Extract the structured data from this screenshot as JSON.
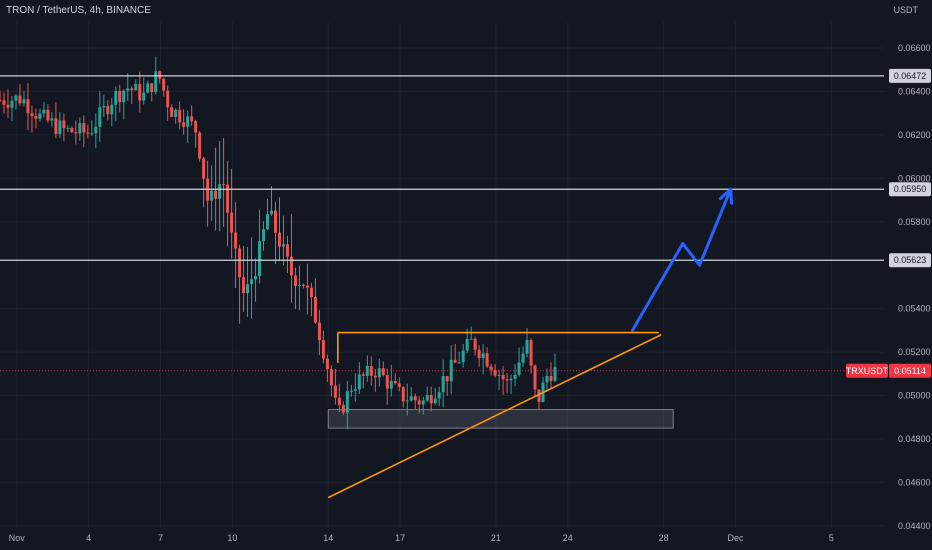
{
  "header": {
    "title": "TRON / TetherUS, 4h, BINANCE"
  },
  "axis": {
    "currency": "USDT"
  },
  "colors": {
    "background": "#131722",
    "grid": "#1e222d",
    "up": "#26a69a",
    "down": "#ef5350",
    "level_line": "#d1d4dc",
    "triangle": "#ff9800",
    "projection": "#2962ff",
    "zone_fill": "#5d606b",
    "price_label_bg": "#f23645",
    "level_label_bg": "#d1d4dc"
  },
  "chart_data": {
    "type": "candlestick",
    "symbol": "TRXUSDT",
    "timeframe": "4h",
    "y_ticks": [
      "0.06600",
      "0.06400",
      "0.06200",
      "0.06000",
      "0.05800",
      "0.05400",
      "0.05200",
      "0.05000",
      "0.04800",
      "0.04600",
      "0.04400"
    ],
    "x_ticks": [
      {
        "label": "Nov",
        "day": 1
      },
      {
        "label": "4",
        "day": 4
      },
      {
        "label": "7",
        "day": 7
      },
      {
        "label": "10",
        "day": 10
      },
      {
        "label": "14",
        "day": 14
      },
      {
        "label": "17",
        "day": 17
      },
      {
        "label": "21",
        "day": 21
      },
      {
        "label": "24",
        "day": 24
      },
      {
        "label": "28",
        "day": 28
      },
      {
        "label": "Dec",
        "day": 31
      },
      {
        "label": "5",
        "day": 35
      }
    ],
    "ylim": [
      0.0439,
      0.0672
    ],
    "xlim_days": [
      0.3,
      37.2
    ],
    "levels": [
      {
        "value": "0.06472",
        "price": 0.06472
      },
      {
        "value": "0.05950",
        "price": 0.0595
      },
      {
        "value": "0.05623",
        "price": 0.05623
      }
    ],
    "current_price": {
      "symbol": "TRXUSDT",
      "value": "0.05114",
      "price": 0.05114
    },
    "support_zone": {
      "from_day": 14.0,
      "to_day": 28.4,
      "low": 0.0485,
      "high": 0.04935
    },
    "triangle": {
      "top_line": {
        "from_day": 14.4,
        "to_day": 27.8,
        "price": 0.0529
      },
      "base_line": {
        "from_day": 14.0,
        "from_price": 0.0453,
        "to_day": 27.9,
        "to_price": 0.0528
      },
      "left_tick": {
        "day": 14.4,
        "from_price": 0.0529,
        "to_price": 0.0515
      }
    },
    "projection_arrow": [
      {
        "day": 26.7,
        "price": 0.053
      },
      {
        "day": 28.8,
        "price": 0.057
      },
      {
        "day": 29.5,
        "price": 0.056
      },
      {
        "day": 30.8,
        "price": 0.0595
      }
    ],
    "anchors": [
      {
        "day": 0.3,
        "price": 0.0636
      },
      {
        "day": 1.2,
        "price": 0.0637
      },
      {
        "day": 2.0,
        "price": 0.0628
      },
      {
        "day": 3.0,
        "price": 0.0622
      },
      {
        "day": 4.0,
        "price": 0.0621
      },
      {
        "day": 5.0,
        "price": 0.0637
      },
      {
        "day": 5.6,
        "price": 0.0642
      },
      {
        "day": 6.3,
        "price": 0.0638
      },
      {
        "day": 6.9,
        "price": 0.0648
      },
      {
        "day": 7.4,
        "price": 0.0632
      },
      {
        "day": 8.0,
        "price": 0.0628
      },
      {
        "day": 8.5,
        "price": 0.0622
      },
      {
        "day": 9.0,
        "price": 0.0588
      },
      {
        "day": 9.6,
        "price": 0.06
      },
      {
        "day": 10.0,
        "price": 0.057
      },
      {
        "day": 10.5,
        "price": 0.0545
      },
      {
        "day": 11.0,
        "price": 0.056
      },
      {
        "day": 11.5,
        "price": 0.0585
      },
      {
        "day": 12.0,
        "price": 0.057
      },
      {
        "day": 12.5,
        "price": 0.0555
      },
      {
        "day": 13.0,
        "price": 0.0552
      },
      {
        "day": 13.5,
        "price": 0.0535
      },
      {
        "day": 14.0,
        "price": 0.0512
      },
      {
        "day": 14.4,
        "price": 0.049
      },
      {
        "day": 15.0,
        "price": 0.0505
      },
      {
        "day": 16.0,
        "price": 0.0512
      },
      {
        "day": 17.0,
        "price": 0.05
      },
      {
        "day": 18.0,
        "price": 0.0497
      },
      {
        "day": 19.0,
        "price": 0.051
      },
      {
        "day": 20.0,
        "price": 0.0525
      },
      {
        "day": 20.8,
        "price": 0.0515
      },
      {
        "day": 21.5,
        "price": 0.0505
      },
      {
        "day": 22.3,
        "price": 0.0523
      },
      {
        "day": 22.7,
        "price": 0.0496
      },
      {
        "day": 23.2,
        "price": 0.0511
      },
      {
        "day": 23.5,
        "price": 0.05114
      }
    ]
  }
}
